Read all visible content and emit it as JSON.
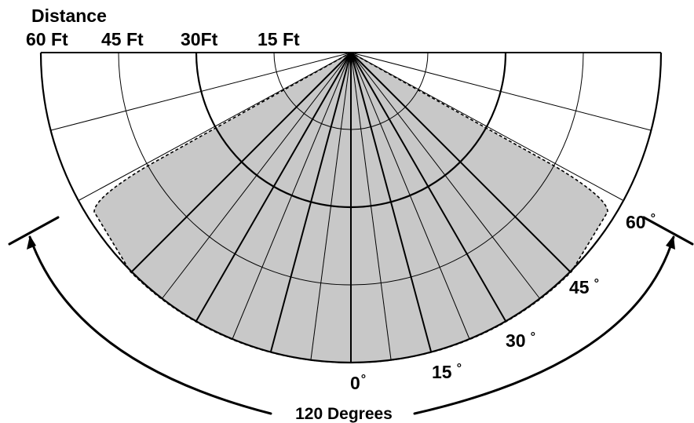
{
  "title": "Distance",
  "distance_labels": [
    "60 Ft",
    "45 Ft",
    "30Ft",
    "15 Ft"
  ],
  "angle_labels": [
    "0",
    "15",
    "30",
    "45",
    "60"
  ],
  "degree_symbol": "°",
  "coverage_label": "120 Degrees",
  "colors": {
    "coverage_fill": "#c8c8c8",
    "lines": "#000000",
    "background": "#ffffff"
  }
}
